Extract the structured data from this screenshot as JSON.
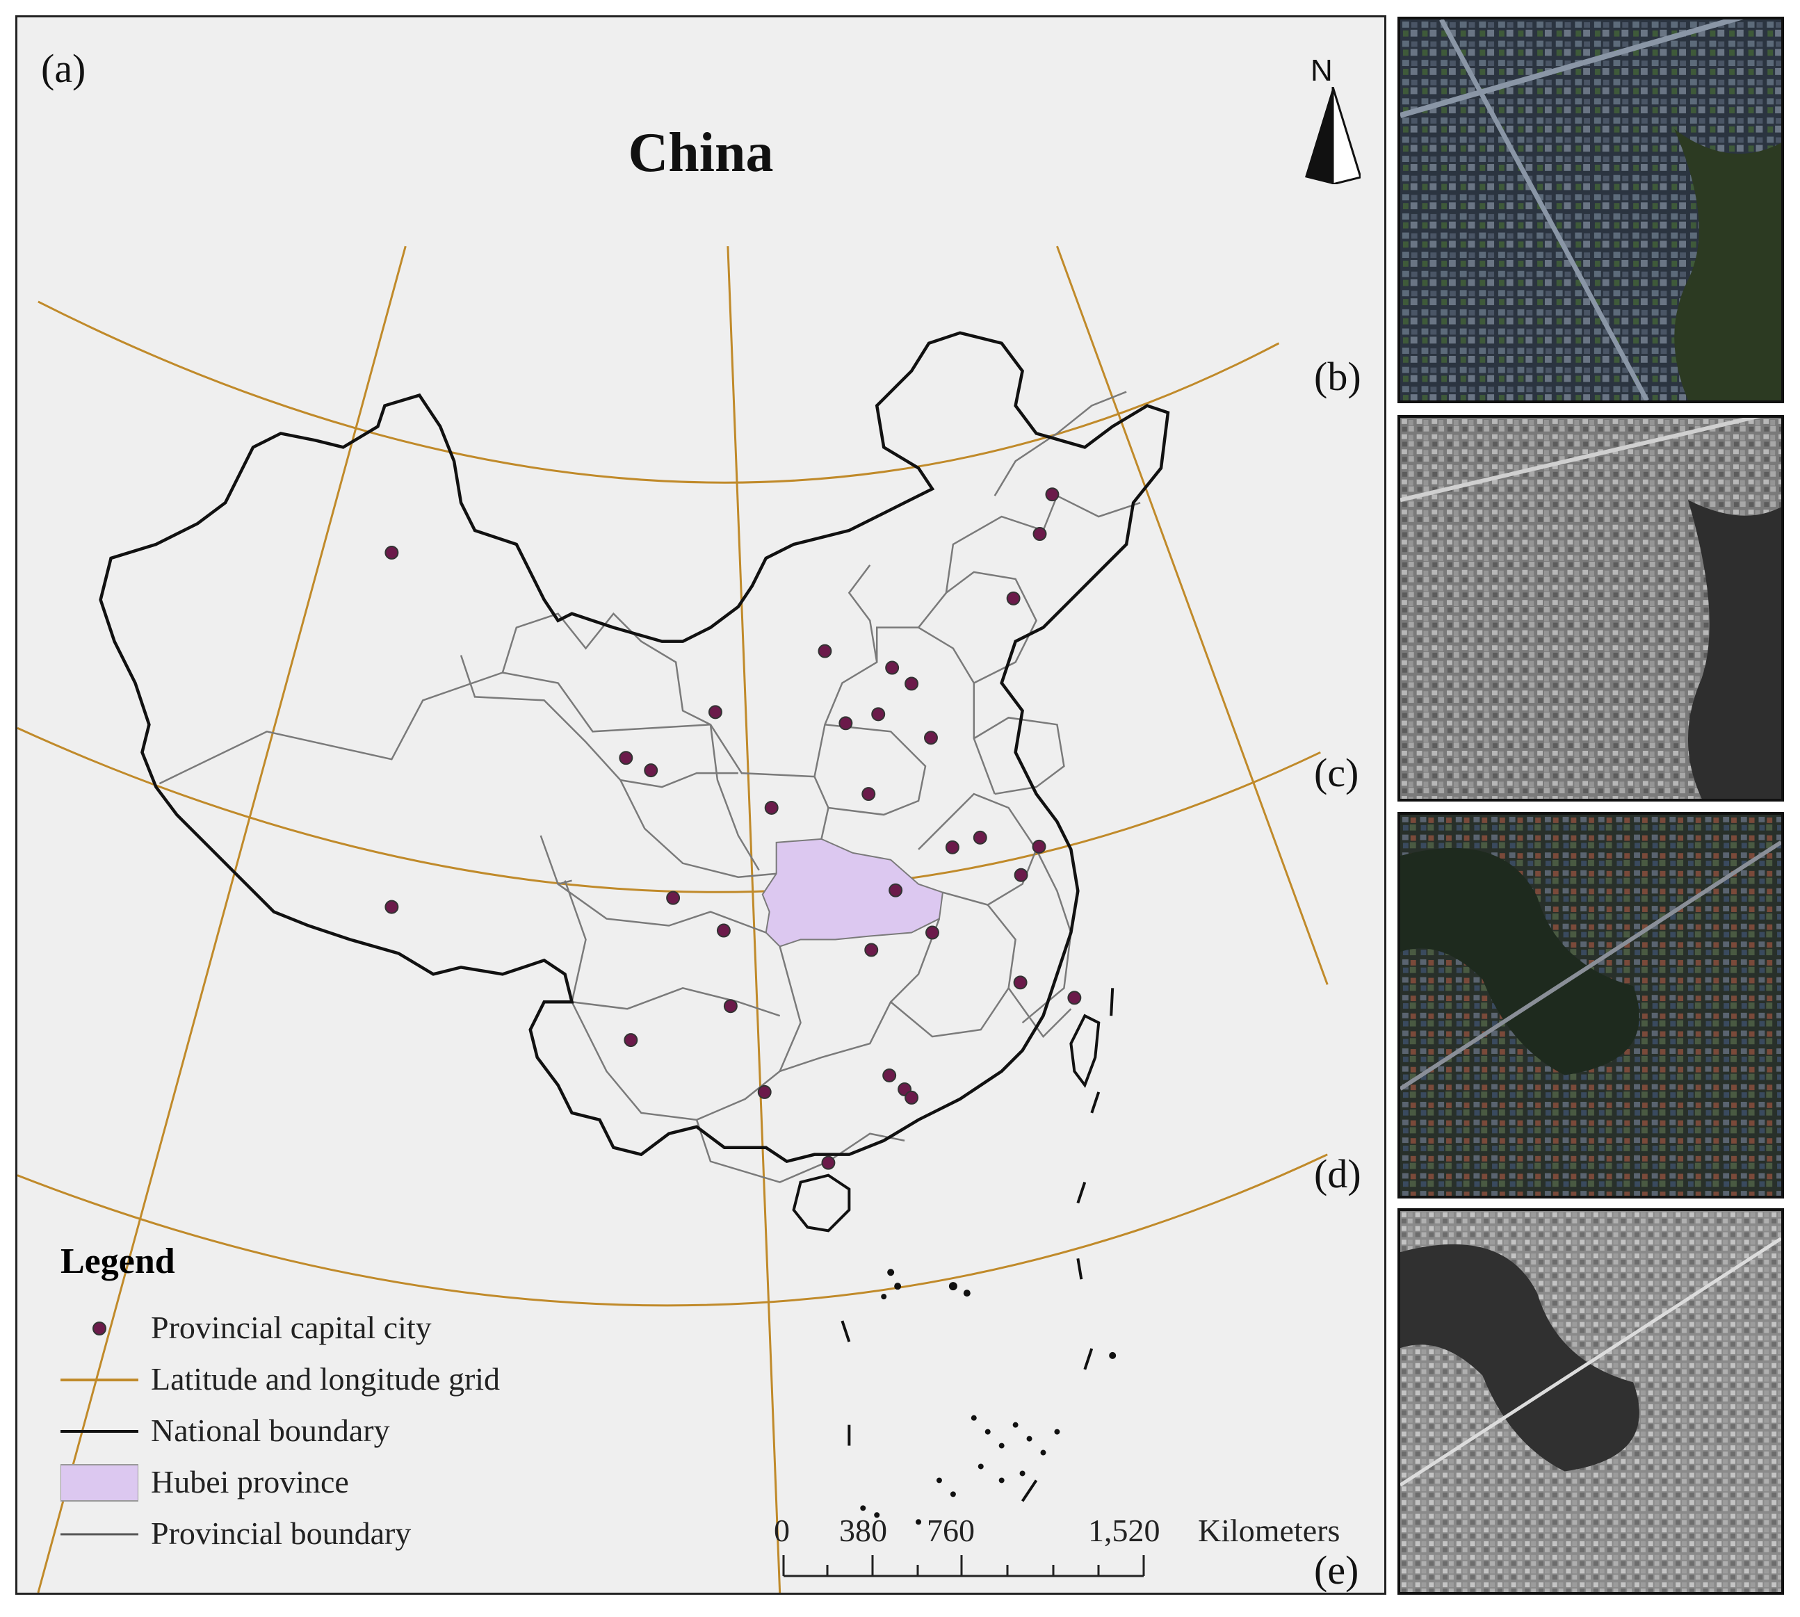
{
  "panel_a": {
    "tag": "(a)",
    "title": "China",
    "north_label": "N",
    "legend": {
      "title": "Legend",
      "items": [
        {
          "label": "Provincial capital city",
          "symbol": "point",
          "color": "#6b1a4a"
        },
        {
          "label": "Latitude and longitude grid",
          "symbol": "line",
          "color": "#c08a2a"
        },
        {
          "label": "National boundary",
          "symbol": "line",
          "color": "#111111"
        },
        {
          "label": "Hubei province",
          "symbol": "fill",
          "color": "#dcc8f0"
        },
        {
          "label": "Provincial boundary",
          "symbol": "line",
          "color": "#7a7a7a"
        }
      ]
    },
    "scale_bar": {
      "ticks": [
        "0",
        "380",
        "760",
        "1,520"
      ],
      "unit": "Kilometers"
    }
  },
  "images": [
    {
      "tag": "(b)",
      "type": "true-color satellite image"
    },
    {
      "tag": "(c)",
      "type": "grayscale image"
    },
    {
      "tag": "(d)",
      "type": "true-color satellite image"
    },
    {
      "tag": "(e)",
      "type": "grayscale image"
    }
  ],
  "colors": {
    "background": "#efefef",
    "grid": "#c08a2a",
    "national_boundary": "#111111",
    "provincial_boundary": "#7a7a7a",
    "hubei": "#dcc8f0",
    "capital": "#6b1a4a"
  }
}
